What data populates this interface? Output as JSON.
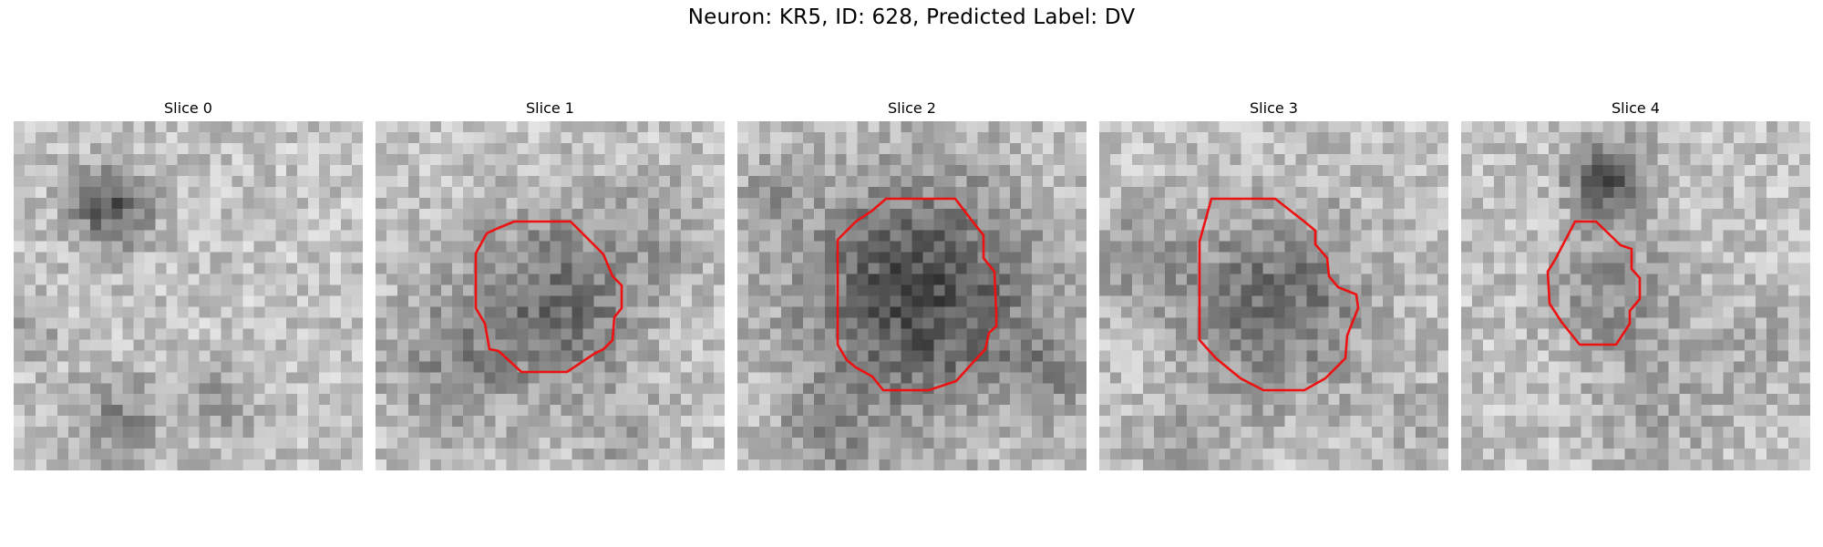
{
  "figure": {
    "title": "Neuron: KR5, ID: 628, Predicted Label: DV"
  },
  "panels": [
    {
      "title": "Slice 0",
      "has_outline": false
    },
    {
      "title": "Slice 1",
      "has_outline": true
    },
    {
      "title": "Slice 2",
      "has_outline": true
    },
    {
      "title": "Slice 3",
      "has_outline": true
    },
    {
      "title": "Slice 4",
      "has_outline": true
    }
  ],
  "colors": {
    "outline": "#ee1111",
    "colormap": "grayscale"
  }
}
